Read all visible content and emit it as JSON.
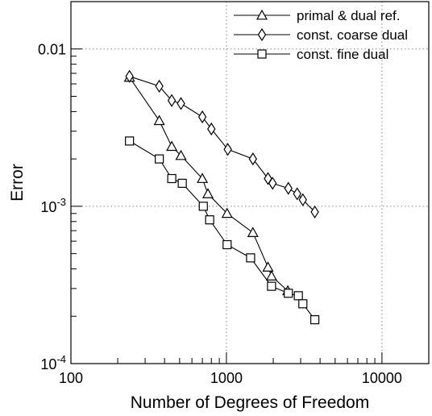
{
  "chart_data": {
    "type": "line",
    "xscale": "log",
    "yscale": "log",
    "xlim": [
      100,
      20000
    ],
    "ylim": [
      0.0001,
      0.02
    ],
    "xlabel": "Number of Degrees of Freedom",
    "ylabel": "Error",
    "grid": "dotted at 1000, 10000 (x) and 0.001, 0.01 (y)",
    "legend_position": "top-right",
    "x_tick_labels": [
      {
        "value": 100,
        "label": "100"
      },
      {
        "value": 1000,
        "label": "1000"
      },
      {
        "value": 10000,
        "label": "10000"
      }
    ],
    "y_tick_labels": [
      {
        "value": 0.0001,
        "base": "10",
        "exp": "-4"
      },
      {
        "value": 0.001,
        "base": "10",
        "exp": "-3"
      },
      {
        "value": 0.01,
        "label": "0.01"
      }
    ],
    "series": [
      {
        "name": "primal & dual ref.",
        "marker": "triangle",
        "x": [
          238,
          370,
          445,
          510,
          700,
          760,
          1010,
          1480,
          1850,
          1950,
          2480
        ],
        "y": [
          0.0066,
          0.0035,
          0.0024,
          0.0021,
          0.0015,
          0.0012,
          0.0009,
          0.00068,
          0.00041,
          0.00036,
          0.00029
        ]
      },
      {
        "name": "const. coarse dual",
        "marker": "diamond",
        "x": [
          238,
          370,
          445,
          510,
          700,
          800,
          1020,
          1480,
          1850,
          1980,
          2500,
          2850,
          3100,
          3700
        ],
        "y": [
          0.0067,
          0.0058,
          0.0047,
          0.0045,
          0.0037,
          0.0031,
          0.0023,
          0.002,
          0.0015,
          0.0014,
          0.0013,
          0.0012,
          0.0011,
          0.00092
        ]
      },
      {
        "name": "const. fine dual",
        "marker": "square",
        "x": [
          238,
          370,
          445,
          520,
          710,
          780,
          1010,
          1430,
          1950,
          2500,
          2900,
          3100,
          3700
        ],
        "y": [
          0.0026,
          0.002,
          0.0015,
          0.0014,
          0.001,
          0.00082,
          0.00057,
          0.00047,
          0.00031,
          0.00028,
          0.00027,
          0.00024,
          0.00019
        ]
      }
    ]
  }
}
